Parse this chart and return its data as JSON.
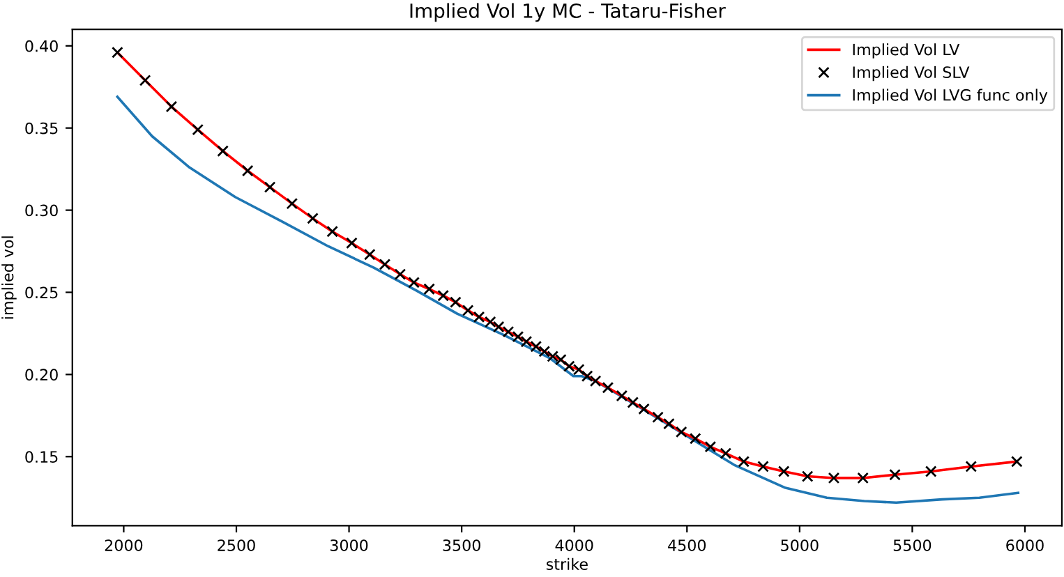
{
  "chart_data": {
    "type": "line",
    "title": "Implied Vol 1y MC - Tataru-Fisher",
    "xlabel": "strike",
    "ylabel": "implied vol",
    "xlim": [
      1772,
      6164
    ],
    "ylim": [
      0.108,
      0.41
    ],
    "xticks": [
      2000,
      2500,
      3000,
      3500,
      4000,
      4500,
      5000,
      5500,
      6000
    ],
    "yticks": [
      {
        "value": 0.15,
        "label": "0.15"
      },
      {
        "value": 0.2,
        "label": "0.20"
      },
      {
        "value": 0.25,
        "label": "0.25"
      },
      {
        "value": 0.3,
        "label": "0.30"
      },
      {
        "value": 0.35,
        "label": "0.35"
      },
      {
        "value": 0.4,
        "label": "0.40"
      }
    ],
    "legend": "top right",
    "grid": false,
    "series": [
      {
        "name": "Implied Vol LV",
        "color": "#ff0000",
        "marker": "none",
        "x": [
          1972,
          2095,
          2212,
          2329,
          2440,
          2550,
          2649,
          2747,
          2839,
          2926,
          3012,
          3092,
          3159,
          3227,
          3288,
          3356,
          3418,
          3473,
          3528,
          3577,
          3627,
          3664,
          3707,
          3750,
          3787,
          3830,
          3867,
          3904,
          3940,
          3977,
          4020,
          4057,
          4094,
          4149,
          4211,
          4260,
          4309,
          4371,
          4420,
          4475,
          4537,
          4604,
          4672,
          4752,
          4838,
          4930,
          5035,
          5152,
          5281,
          5423,
          5583,
          5761,
          5964
        ],
        "values": [
          0.396,
          0.379,
          0.363,
          0.349,
          0.336,
          0.324,
          0.314,
          0.304,
          0.295,
          0.287,
          0.28,
          0.273,
          0.267,
          0.261,
          0.256,
          0.252,
          0.248,
          0.244,
          0.239,
          0.235,
          0.232,
          0.229,
          0.226,
          0.223,
          0.22,
          0.217,
          0.214,
          0.211,
          0.209,
          0.205,
          0.203,
          0.199,
          0.196,
          0.192,
          0.187,
          0.183,
          0.179,
          0.174,
          0.17,
          0.165,
          0.161,
          0.156,
          0.152,
          0.147,
          0.144,
          0.141,
          0.138,
          0.137,
          0.137,
          0.139,
          0.141,
          0.144,
          0.147
        ]
      },
      {
        "name": "Implied Vol SLV",
        "type": "scatter",
        "color": "#000000",
        "marker": "cross",
        "x": [
          1972,
          2095,
          2212,
          2329,
          2440,
          2550,
          2649,
          2747,
          2839,
          2926,
          3012,
          3092,
          3159,
          3227,
          3288,
          3356,
          3418,
          3473,
          3528,
          3577,
          3627,
          3664,
          3707,
          3750,
          3787,
          3830,
          3867,
          3904,
          3940,
          3977,
          4020,
          4057,
          4094,
          4149,
          4211,
          4260,
          4309,
          4371,
          4420,
          4475,
          4537,
          4604,
          4672,
          4752,
          4838,
          4930,
          5035,
          5152,
          5281,
          5423,
          5583,
          5761,
          5964
        ],
        "values": [
          0.396,
          0.379,
          0.363,
          0.349,
          0.336,
          0.324,
          0.314,
          0.304,
          0.295,
          0.287,
          0.28,
          0.273,
          0.267,
          0.261,
          0.256,
          0.252,
          0.248,
          0.244,
          0.239,
          0.235,
          0.232,
          0.229,
          0.226,
          0.223,
          0.22,
          0.217,
          0.214,
          0.211,
          0.209,
          0.205,
          0.203,
          0.199,
          0.196,
          0.192,
          0.187,
          0.183,
          0.179,
          0.174,
          0.17,
          0.165,
          0.161,
          0.156,
          0.152,
          0.147,
          0.144,
          0.141,
          0.138,
          0.137,
          0.137,
          0.139,
          0.141,
          0.144,
          0.147
        ]
      },
      {
        "name": "Implied Vol LVG func only",
        "color": "#1f77b4",
        "marker": "none",
        "x": [
          1972,
          2126,
          2292,
          2495,
          2704,
          2908,
          3110,
          3300,
          3480,
          3688,
          3891,
          3996,
          4033,
          4094,
          4303,
          4506,
          4709,
          4937,
          5121,
          5287,
          5429,
          5632,
          5798,
          5970
        ],
        "values": [
          0.369,
          0.345,
          0.326,
          0.308,
          0.293,
          0.278,
          0.265,
          0.251,
          0.237,
          0.224,
          0.21,
          0.199,
          0.199,
          0.196,
          0.179,
          0.162,
          0.145,
          0.131,
          0.125,
          0.123,
          0.122,
          0.124,
          0.125,
          0.128
        ]
      }
    ]
  }
}
